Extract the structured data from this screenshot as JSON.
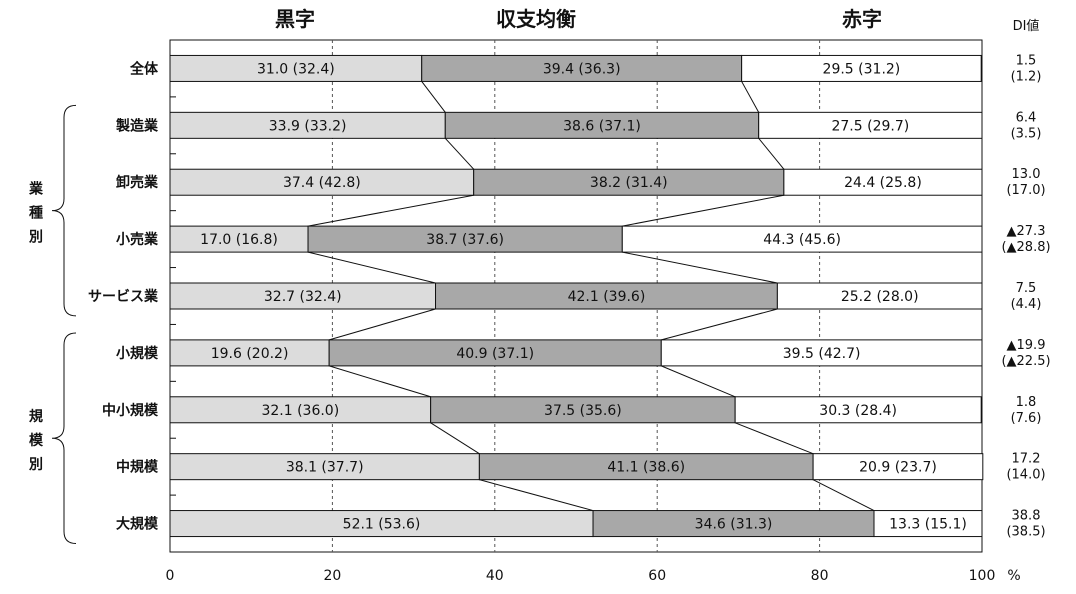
{
  "chart_data": {
    "type": "bar",
    "stacked": true,
    "orientation": "horizontal",
    "series": [
      {
        "name": "黒字",
        "color": "#dcdcdc"
      },
      {
        "name": "収支均衡",
        "color": "#a8a8a8"
      },
      {
        "name": "赤字",
        "color": "#ffffff"
      }
    ],
    "di_header": "DI値",
    "categories": [
      {
        "label": "全体",
        "values": [
          31.0,
          39.4,
          29.5
        ],
        "labels": [
          "31.0 (32.4)",
          "39.4 (36.3)",
          "29.5 (31.2)"
        ],
        "di": [
          "1.5",
          "(1.2)"
        ]
      },
      {
        "label": "製造業",
        "values": [
          33.9,
          38.6,
          27.5
        ],
        "labels": [
          "33.9 (33.2)",
          "38.6 (37.1)",
          "27.5 (29.7)"
        ],
        "di": [
          "6.4",
          "(3.5)"
        ]
      },
      {
        "label": "卸売業",
        "values": [
          37.4,
          38.2,
          24.4
        ],
        "labels": [
          "37.4 (42.8)",
          "38.2 (31.4)",
          "24.4 (25.8)"
        ],
        "di": [
          "13.0",
          "(17.0)"
        ]
      },
      {
        "label": "小売業",
        "values": [
          17.0,
          38.7,
          44.3
        ],
        "labels": [
          "17.0 (16.8)",
          "38.7 (37.6)",
          "44.3 (45.6)"
        ],
        "di": [
          "▲27.3",
          "(▲28.8)"
        ]
      },
      {
        "label": "サービス業",
        "values": [
          32.7,
          42.1,
          25.2
        ],
        "labels": [
          "32.7 (32.4)",
          "42.1 (39.6)",
          "25.2 (28.0)"
        ],
        "di": [
          "7.5",
          "(4.4)"
        ]
      },
      {
        "label": "小規模",
        "values": [
          19.6,
          40.9,
          39.5
        ],
        "labels": [
          "19.6 (20.2)",
          "40.9 (37.1)",
          "39.5 (42.7)"
        ],
        "di": [
          "▲19.9",
          "(▲22.5)"
        ]
      },
      {
        "label": "中小規模",
        "values": [
          32.1,
          37.5,
          30.3
        ],
        "labels": [
          "32.1 (36.0)",
          "37.5 (35.6)",
          "30.3 (28.4)"
        ],
        "di": [
          "1.8",
          "(7.6)"
        ]
      },
      {
        "label": "中規模",
        "values": [
          38.1,
          41.1,
          20.9
        ],
        "labels": [
          "38.1 (37.7)",
          "41.1 (38.6)",
          "20.9 (23.7)"
        ],
        "di": [
          "17.2",
          "(14.0)"
        ]
      },
      {
        "label": "大規模",
        "values": [
          52.1,
          34.6,
          13.3
        ],
        "labels": [
          "52.1 (53.6)",
          "34.6 (31.3)",
          "13.3 (15.1)"
        ],
        "di": [
          "38.8",
          "(38.5)"
        ]
      }
    ],
    "groups": [
      {
        "label": "業種別",
        "chars": [
          "業",
          "種",
          "別"
        ],
        "from": 1,
        "to": 4
      },
      {
        "label": "規模別",
        "chars": [
          "規",
          "模",
          "別"
        ],
        "from": 5,
        "to": 8
      }
    ],
    "xlim": [
      0,
      100
    ],
    "xticks": [
      0,
      20,
      40,
      60,
      80,
      100
    ],
    "unit": "%",
    "grid": "vertical dashed"
  }
}
